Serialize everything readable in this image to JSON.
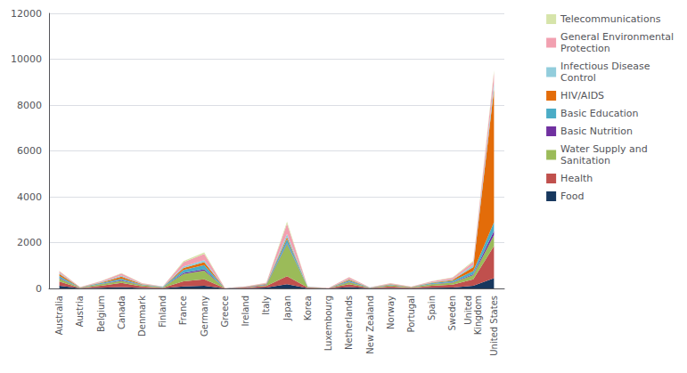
{
  "chart_data": {
    "type": "area",
    "stacked": true,
    "grid": true,
    "legend": "right",
    "categories": [
      "Australia",
      "Austria",
      "Belgium",
      "Canada",
      "Denmark",
      "Finland",
      "France",
      "Germany",
      "Greece",
      "Ireland",
      "Italy",
      "Japan",
      "Korea",
      "Luxembourg",
      "Netherlands",
      "New Zealand",
      "Norway",
      "Portugal",
      "Spain",
      "Sweden",
      "United\nKingdom",
      "United States"
    ],
    "series": [
      {
        "name": "Food",
        "color": "#17375e",
        "values": [
          120,
          5,
          25,
          60,
          15,
          8,
          90,
          120,
          2,
          12,
          35,
          180,
          12,
          2,
          55,
          5,
          15,
          8,
          25,
          35,
          120,
          450
        ]
      },
      {
        "name": "Health",
        "color": "#c0504d",
        "values": [
          180,
          15,
          90,
          180,
          70,
          25,
          220,
          280,
          4,
          25,
          70,
          350,
          25,
          4,
          130,
          15,
          70,
          25,
          90,
          130,
          280,
          1400
        ]
      },
      {
        "name": "Water Supply and\nSanitation",
        "color": "#9bbb59",
        "values": [
          130,
          8,
          70,
          90,
          50,
          15,
          320,
          380,
          3,
          15,
          45,
          1400,
          18,
          2,
          90,
          8,
          50,
          15,
          70,
          90,
          180,
          480
        ]
      },
      {
        "name": "Basic Nutrition",
        "color": "#7030a0",
        "values": [
          25,
          4,
          12,
          25,
          8,
          4,
          45,
          55,
          1,
          4,
          12,
          45,
          4,
          1,
          18,
          2,
          8,
          4,
          12,
          18,
          45,
          180
        ]
      },
      {
        "name": "Basic Education",
        "color": "#4bacc6",
        "values": [
          90,
          8,
          35,
          70,
          25,
          12,
          130,
          180,
          2,
          12,
          25,
          180,
          8,
          2,
          55,
          6,
          25,
          8,
          35,
          55,
          130,
          380
        ]
      },
      {
        "name": "HIV/AIDS",
        "color": "#e36c09",
        "values": [
          90,
          4,
          25,
          90,
          18,
          8,
          90,
          130,
          1,
          8,
          18,
          90,
          4,
          1,
          45,
          4,
          18,
          4,
          25,
          45,
          180,
          5800
        ]
      },
      {
        "name": "Infectious Disease\nControl",
        "color": "#92cddc",
        "values": [
          45,
          4,
          18,
          45,
          12,
          6,
          70,
          90,
          1,
          6,
          12,
          130,
          4,
          1,
          25,
          2,
          12,
          4,
          18,
          25,
          90,
          280
        ]
      },
      {
        "name": "General Environmental\nProtection",
        "color": "#f2a0b0",
        "values": [
          70,
          8,
          35,
          90,
          25,
          12,
          180,
          270,
          2,
          8,
          25,
          450,
          8,
          2,
          70,
          4,
          25,
          8,
          35,
          70,
          130,
          450
        ]
      },
      {
        "name": "Telecommunications",
        "color": "#d6e4aa",
        "values": [
          18,
          2,
          8,
          18,
          6,
          2,
          45,
          70,
          1,
          2,
          6,
          90,
          2,
          1,
          12,
          1,
          6,
          2,
          8,
          18,
          45,
          90
        ]
      }
    ],
    "ylim": [
      0,
      12000
    ],
    "yticks": [
      0,
      2000,
      4000,
      6000,
      8000,
      10000,
      12000
    ]
  }
}
